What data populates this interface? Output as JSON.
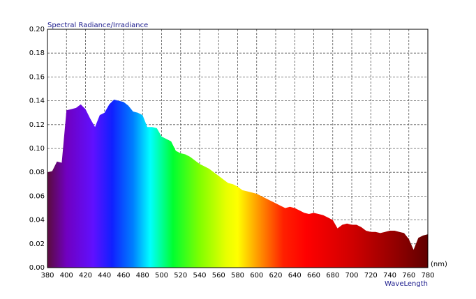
{
  "chart_data": {
    "type": "area",
    "title": "Spectral Radiance/Irradiance",
    "x_label": "WaveLength",
    "x_unit": "(nm)",
    "x": [
      380,
      385,
      390,
      395,
      400,
      405,
      410,
      415,
      420,
      425,
      430,
      435,
      440,
      445,
      450,
      455,
      460,
      465,
      470,
      475,
      480,
      485,
      490,
      495,
      500,
      505,
      510,
      515,
      520,
      525,
      530,
      535,
      540,
      545,
      550,
      555,
      560,
      565,
      570,
      575,
      580,
      585,
      590,
      595,
      600,
      605,
      610,
      615,
      620,
      625,
      630,
      635,
      640,
      645,
      650,
      655,
      660,
      665,
      670,
      675,
      680,
      685,
      690,
      695,
      700,
      705,
      710,
      715,
      720,
      725,
      730,
      735,
      740,
      745,
      750,
      755,
      760,
      765,
      770,
      775,
      780
    ],
    "values": [
      0.08,
      0.081,
      0.089,
      0.088,
      0.132,
      0.133,
      0.134,
      0.137,
      0.133,
      0.125,
      0.118,
      0.128,
      0.13,
      0.137,
      0.141,
      0.14,
      0.139,
      0.136,
      0.131,
      0.13,
      0.128,
      0.118,
      0.118,
      0.117,
      0.11,
      0.108,
      0.106,
      0.098,
      0.096,
      0.095,
      0.093,
      0.09,
      0.087,
      0.085,
      0.083,
      0.08,
      0.077,
      0.074,
      0.071,
      0.07,
      0.068,
      0.065,
      0.064,
      0.063,
      0.062,
      0.06,
      0.058,
      0.056,
      0.054,
      0.052,
      0.05,
      0.051,
      0.05,
      0.048,
      0.046,
      0.045,
      0.046,
      0.045,
      0.044,
      0.042,
      0.04,
      0.033,
      0.036,
      0.037,
      0.036,
      0.036,
      0.034,
      0.031,
      0.03,
      0.03,
      0.029,
      0.03,
      0.031,
      0.031,
      0.03,
      0.029,
      0.024,
      0.015,
      0.025,
      0.027,
      0.028
    ],
    "xlim": [
      380,
      780
    ],
    "xticks": [
      380,
      400,
      420,
      440,
      460,
      480,
      500,
      520,
      540,
      560,
      580,
      600,
      620,
      640,
      660,
      680,
      700,
      720,
      740,
      760,
      780
    ],
    "ylim": [
      0,
      0.2
    ],
    "yticks": [
      {
        "value": 0,
        "label": "0.00"
      },
      {
        "value": 0.02,
        "label": "0.02"
      },
      {
        "value": 0.04,
        "label": "0.04"
      },
      {
        "value": 0.06,
        "label": "0.06"
      },
      {
        "value": 0.08,
        "label": "0.08"
      },
      {
        "value": 0.1,
        "label": "0.10"
      },
      {
        "value": 0.12,
        "label": "0.12"
      },
      {
        "value": 0.14,
        "label": "0.14"
      },
      {
        "value": 0.16,
        "label": "0.16"
      },
      {
        "value": 0.18,
        "label": "0.18"
      },
      {
        "value": 0.2,
        "label": "0.20"
      }
    ],
    "grid": true
  }
}
